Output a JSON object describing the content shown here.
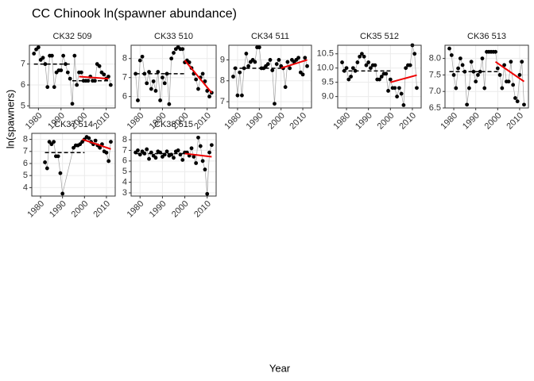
{
  "chart_data": {
    "type": "scatter",
    "title": "CC Chinook ln(spawner abundance)",
    "x_label": "Year",
    "y_label": "ln(spawners)",
    "xlim": [
      1976,
      2014
    ],
    "xticks": [
      1980,
      1990,
      2000,
      2010
    ],
    "grid": true,
    "point_color": "#000000",
    "line_color": "#a0a0a0",
    "mean_color": "#000000",
    "trend_color": "#ee0000",
    "panels": [
      {
        "title": "CK32 509",
        "x": [
          1978,
          1979,
          1980,
          1981,
          1982,
          1983,
          1984,
          1985,
          1986,
          1987,
          1988,
          1989,
          1990,
          1991,
          1992,
          1993,
          1994,
          1995,
          1996,
          1997,
          1998,
          1999,
          2000,
          2001,
          2002,
          2003,
          2004,
          2005,
          2006,
          2007,
          2008,
          2009,
          2010,
          2011,
          2012
        ],
        "values": [
          7.5,
          7.7,
          7.8,
          7.2,
          7.3,
          7.0,
          5.9,
          7.4,
          7.4,
          5.9,
          6.6,
          6.7,
          6.7,
          7.4,
          7.0,
          6.6,
          6.3,
          5.1,
          7.4,
          6.0,
          6.6,
          6.6,
          6.2,
          6.2,
          6.2,
          6.4,
          6.2,
          6.2,
          7.0,
          6.9,
          6.6,
          6.5,
          6.3,
          6.4,
          6.0
        ],
        "ylim": [
          4.9,
          7.9
        ],
        "yticks": [
          5,
          6,
          7
        ],
        "mean_segments": [
          {
            "x": [
              1978,
              1994
            ],
            "values": [
              7.0,
              7.0
            ]
          },
          {
            "x": [
              1995,
              2012
            ],
            "values": [
              6.2,
              6.2
            ]
          }
        ],
        "trend": {
          "x": [
            1998,
            2011
          ],
          "values": [
            6.4,
            6.3
          ]
        }
      },
      {
        "title": "CK33 510",
        "x": [
          1978,
          1979,
          1980,
          1981,
          1982,
          1983,
          1984,
          1985,
          1986,
          1987,
          1988,
          1989,
          1990,
          1991,
          1992,
          1993,
          1994,
          1995,
          1996,
          1997,
          1998,
          1999,
          2000,
          2001,
          2002,
          2003,
          2004,
          2005,
          2006,
          2007,
          2008,
          2009,
          2010,
          2011,
          2012
        ],
        "values": [
          7.2,
          5.8,
          7.9,
          8.1,
          7.2,
          6.7,
          7.3,
          6.4,
          6.8,
          6.3,
          7.3,
          5.8,
          7.0,
          6.7,
          7.2,
          5.6,
          8.0,
          8.3,
          8.5,
          8.6,
          8.5,
          8.5,
          7.8,
          7.9,
          7.8,
          7.5,
          7.2,
          6.9,
          6.4,
          7.0,
          7.2,
          6.8,
          6.3,
          6.0,
          6.2
        ],
        "ylim": [
          5.4,
          8.7
        ],
        "yticks": [
          6,
          7,
          8
        ],
        "mean_segments": [
          {
            "x": [
              1978,
              2000
            ],
            "values": [
              7.2,
              7.2
            ]
          }
        ],
        "trend": {
          "x": [
            2000,
            2012
          ],
          "values": [
            7.9,
            6.2
          ]
        }
      },
      {
        "title": "CK34 511",
        "x": [
          1978,
          1979,
          1980,
          1981,
          1982,
          1983,
          1984,
          1985,
          1986,
          1987,
          1988,
          1989,
          1990,
          1991,
          1992,
          1993,
          1994,
          1995,
          1996,
          1997,
          1998,
          1999,
          2000,
          2001,
          2002,
          2003,
          2004,
          2005,
          2006,
          2007,
          2008,
          2009,
          2010,
          2011,
          2012
        ],
        "values": [
          8.2,
          8.6,
          7.3,
          8.4,
          7.3,
          8.6,
          9.3,
          8.7,
          8.9,
          9.0,
          8.9,
          9.6,
          9.6,
          8.6,
          8.6,
          8.7,
          8.8,
          9.0,
          8.5,
          6.9,
          8.8,
          9.0,
          8.7,
          8.6,
          7.7,
          8.9,
          8.6,
          9.0,
          8.9,
          9.0,
          9.1,
          8.4,
          8.3,
          9.1,
          8.7
        ],
        "ylim": [
          6.7,
          9.7
        ],
        "yticks": [
          7,
          8,
          9
        ],
        "mean_segments": [
          {
            "x": [
              1978,
              2000
            ],
            "values": [
              8.6,
              8.6
            ]
          }
        ],
        "trend": {
          "x": [
            2000,
            2012
          ],
          "values": [
            8.6,
            9.0
          ]
        }
      },
      {
        "title": "CK35 512",
        "x": [
          1978,
          1979,
          1980,
          1981,
          1982,
          1983,
          1984,
          1985,
          1986,
          1987,
          1988,
          1989,
          1990,
          1991,
          1992,
          1993,
          1994,
          1995,
          1996,
          1997,
          1998,
          1999,
          2000,
          2001,
          2002,
          2003,
          2004,
          2005,
          2006,
          2007,
          2008,
          2009,
          2010,
          2011,
          2012
        ],
        "values": [
          10.2,
          9.9,
          10.0,
          9.6,
          9.7,
          10.0,
          9.9,
          10.2,
          10.4,
          10.5,
          10.4,
          10.1,
          10.2,
          10.0,
          10.1,
          10.1,
          9.6,
          9.6,
          9.7,
          9.8,
          9.8,
          9.2,
          9.6,
          9.3,
          9.3,
          9.0,
          9.3,
          9.1,
          8.7,
          10.0,
          10.1,
          10.1,
          10.8,
          10.5,
          9.3
        ],
        "ylim": [
          8.6,
          10.8
        ],
        "yticks": [
          {
            "value": 9,
            "label": "9.0"
          },
          9.5,
          {
            "value": 10,
            "label": "10.0"
          },
          10.5
        ],
        "mean_segments": [
          {
            "x": [
              1978,
              2000
            ],
            "values": [
              9.9,
              9.9
            ]
          }
        ],
        "trend": {
          "x": [
            2000,
            2012
          ],
          "values": [
            9.5,
            9.75
          ]
        }
      },
      {
        "title": "CK36 513",
        "x": [
          1978,
          1979,
          1980,
          1981,
          1982,
          1983,
          1984,
          1985,
          1986,
          1987,
          1988,
          1989,
          1990,
          1991,
          1992,
          1993,
          1994,
          1995,
          1996,
          1997,
          1998,
          1999,
          2000,
          2001,
          2002,
          2003,
          2004,
          2005,
          2006,
          2007,
          2008,
          2009,
          2010,
          2011,
          2012
        ],
        "values": [
          8.3,
          8.1,
          7.5,
          7.1,
          7.7,
          8.0,
          7.8,
          7.6,
          6.6,
          7.1,
          7.9,
          7.6,
          7.3,
          7.5,
          7.6,
          8.0,
          7.1,
          8.2,
          8.2,
          8.2,
          8.2,
          8.2,
          7.7,
          7.5,
          7.1,
          7.8,
          7.3,
          7.3,
          7.9,
          7.2,
          6.8,
          6.7,
          7.5,
          7.9,
          6.6
        ],
        "ylim": [
          6.5,
          8.4
        ],
        "yticks": [
          6.5,
          {
            "value": 7,
            "label": "7.0"
          },
          7.5,
          {
            "value": 8,
            "label": "8.0"
          }
        ],
        "mean_segments": [
          {
            "x": [
              1978,
              2000
            ],
            "values": [
              7.6,
              7.6
            ]
          }
        ],
        "trend": {
          "x": [
            1999,
            2012
          ],
          "values": [
            7.9,
            7.3
          ]
        }
      },
      {
        "title": "CK37 514",
        "x": [
          1982,
          1983,
          1984,
          1985,
          1986,
          1987,
          1988,
          1989,
          1990,
          1995,
          1996,
          1997,
          1998,
          1999,
          2000,
          2001,
          2002,
          2003,
          2004,
          2005,
          2006,
          2007,
          2008,
          2009,
          2010,
          2011,
          2012
        ],
        "values": [
          6.1,
          5.6,
          7.8,
          7.6,
          7.8,
          6.6,
          6.6,
          5.2,
          3.5,
          7.3,
          7.5,
          7.5,
          7.6,
          7.8,
          8.0,
          8.2,
          8.1,
          7.8,
          7.6,
          7.9,
          7.5,
          7.3,
          7.6,
          7.0,
          6.9,
          6.2,
          7.8
        ],
        "ylim": [
          3.3,
          8.5
        ],
        "yticks": [
          4,
          5,
          6,
          7,
          8
        ],
        "mean_segments": [
          {
            "x": [
              1982,
              2000
            ],
            "values": [
              6.9,
              6.9
            ]
          }
        ],
        "trend": {
          "x": [
            1999,
            2012
          ],
          "values": [
            8.0,
            7.2
          ]
        }
      },
      {
        "title": "CK38 515",
        "x": [
          1978,
          1979,
          1980,
          1981,
          1982,
          1983,
          1984,
          1985,
          1986,
          1987,
          1988,
          1989,
          1990,
          1991,
          1992,
          1993,
          1994,
          1995,
          1996,
          1997,
          1998,
          1999,
          2000,
          2001,
          2002,
          2003,
          2004,
          2005,
          2006,
          2007,
          2008,
          2009,
          2010,
          2011,
          2012
        ],
        "values": [
          6.8,
          7.0,
          6.6,
          6.9,
          6.7,
          7.1,
          6.2,
          6.8,
          6.5,
          6.3,
          6.9,
          6.8,
          6.4,
          6.6,
          6.9,
          6.5,
          6.6,
          6.3,
          6.9,
          7.0,
          6.6,
          6.1,
          6.8,
          6.8,
          6.5,
          7.2,
          6.4,
          5.8,
          8.2,
          7.4,
          6.0,
          5.2,
          2.9,
          6.8,
          7.5
        ],
        "ylim": [
          2.7,
          8.6
        ],
        "yticks": [
          3,
          4,
          5,
          6,
          7,
          8
        ],
        "mean_segments": [
          {
            "x": [
              1978,
              2000
            ],
            "values": [
              6.7,
              6.7
            ]
          }
        ],
        "trend": {
          "x": [
            2000,
            2012
          ],
          "values": [
            6.7,
            6.4
          ]
        }
      }
    ]
  }
}
